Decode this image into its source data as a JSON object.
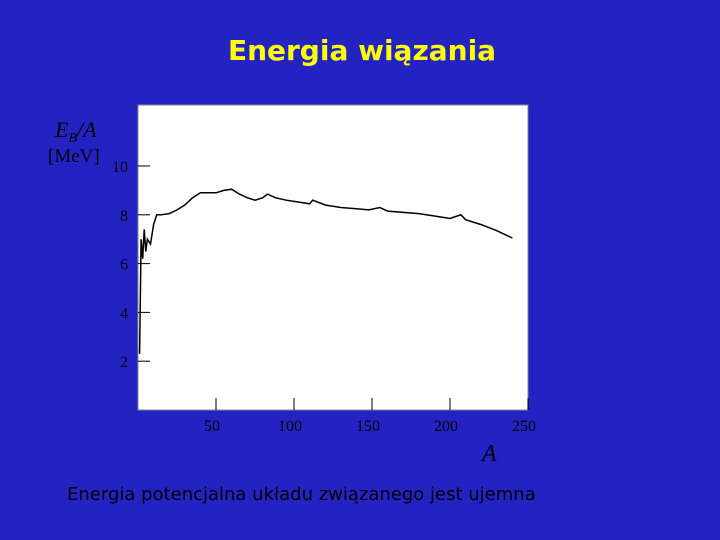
{
  "chart_data": {
    "type": "line",
    "title": "Energia wiązania",
    "y_label": {
      "main": "E",
      "sub": "B",
      "rest": "/A"
    },
    "y_unit": "[MeV]",
    "x_label": "A",
    "note": "Energia potencjalna układu związanego jest ujemna",
    "x": [
      1,
      2,
      3,
      4,
      5,
      6,
      8,
      10,
      12,
      15,
      20,
      25,
      30,
      35,
      40,
      45,
      50,
      55,
      60,
      65,
      70,
      75,
      80,
      83,
      88,
      95,
      100,
      110,
      112,
      120,
      130,
      140,
      148,
      155,
      160,
      170,
      180,
      190,
      200,
      207,
      210,
      220,
      230,
      240
    ],
    "series": [
      {
        "name": "EB/A",
        "color": "#000000",
        "values": [
          2.3,
          7.0,
          6.2,
          7.4,
          6.5,
          7.0,
          6.8,
          7.6,
          8.0,
          8.0,
          8.05,
          8.2,
          8.4,
          8.7,
          8.9,
          8.9,
          8.9,
          9.0,
          9.05,
          8.85,
          8.7,
          8.6,
          8.7,
          8.85,
          8.7,
          8.6,
          8.55,
          8.45,
          8.6,
          8.4,
          8.3,
          8.25,
          8.2,
          8.3,
          8.15,
          8.1,
          8.05,
          7.95,
          7.85,
          8.0,
          7.8,
          7.6,
          7.35,
          7.05
        ]
      }
    ],
    "xlim": [
      0,
      250
    ],
    "ylim": [
      0,
      12.5
    ],
    "xticks": [
      50,
      100,
      150,
      200,
      250
    ],
    "yticks": [
      2,
      4,
      6,
      8,
      10
    ]
  }
}
